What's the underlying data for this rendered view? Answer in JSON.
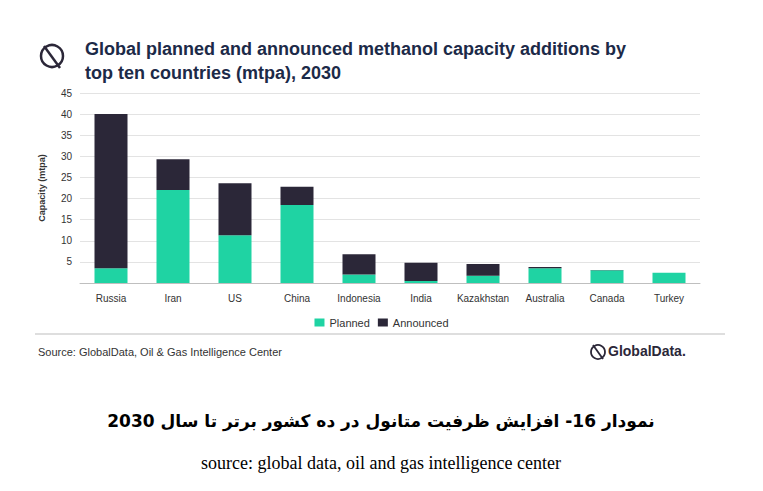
{
  "chart_data": {
    "type": "bar",
    "title": "Global planned and announced methanol capacity additions by\ntop ten countries (mtpa), 2030",
    "y_label": "Capacity (mtpa)",
    "categories": [
      "Russia",
      "Iran",
      "US",
      "China",
      "Indonesia",
      "India",
      "Kazakhstan",
      "Australia",
      "Canada",
      "Turkey"
    ],
    "series": [
      {
        "name": "Planned",
        "color": "#1fd3a3",
        "values": [
          3.5,
          22,
          11.3,
          18.5,
          2,
          0.5,
          1.7,
          3.5,
          3,
          2.4
        ]
      },
      {
        "name": "Announced",
        "color": "#2b2738",
        "values": [
          36.5,
          7.3,
          12.3,
          4.3,
          4.8,
          4.3,
          2.8,
          0.3,
          0.1,
          0
        ]
      }
    ],
    "ylim": [
      0,
      45
    ],
    "yticks": [
      5,
      10,
      15,
      20,
      25,
      30,
      35,
      40,
      45
    ],
    "grid": true,
    "stacked": true,
    "legend": "bottom"
  },
  "source": "Source: GlobalData, Oil & Gas Intelligence Center",
  "logo": "GlobalData.",
  "caption": "نمودار 16- افزایش ظرفیت متانول در ده کشور برتر تا سال 2030",
  "caption_source": "source: global data, oil and gas intelligence center"
}
